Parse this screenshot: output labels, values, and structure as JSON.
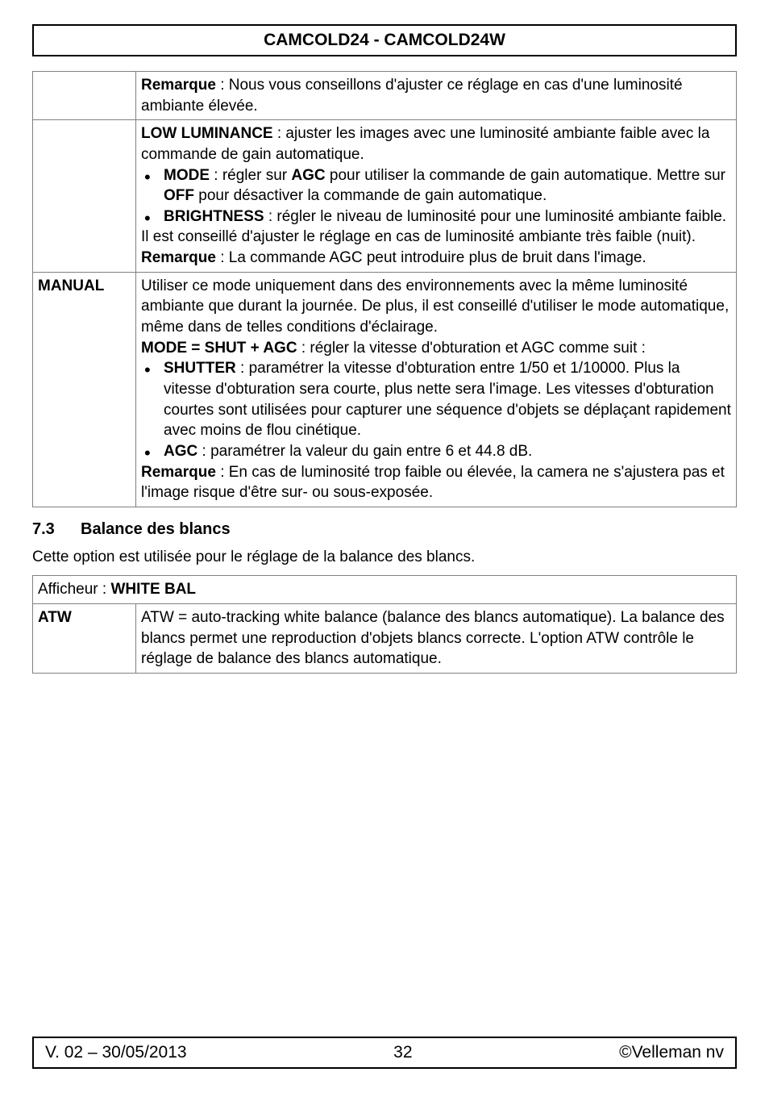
{
  "header": {
    "title": "CAMCOLD24 - CAMCOLD24W"
  },
  "table1": {
    "row1": {
      "label": "",
      "remarque_label": "Remarque",
      "remarque_text": " : Nous vous conseillons d'ajuster ce réglage en cas d'une luminosité ambiante élevée."
    },
    "row2": {
      "label": "",
      "low_lum_label": "LOW LUMINANCE",
      "low_lum_text": " : ajuster les images avec une luminosité ambiante faible avec la commande de gain automatique.",
      "bullet1_label": "MODE",
      "bullet1_text": " : régler sur ",
      "bullet1_bold": "AGC",
      "bullet1_text2": " pour utiliser la commande de gain automatique. Mettre sur ",
      "bullet1_bold2": "OFF",
      "bullet1_text3": " pour désactiver la commande de gain automatique.",
      "bullet2_label": "BRIGHTNESS",
      "bullet2_text": " : régler le niveau de luminosité pour une luminosité ambiante faible.",
      "after_bullets": "Il est conseillé d'ajuster le réglage en cas de luminosité ambiante très faible (nuit).",
      "remarque_label": "Remarque",
      "remarque_text": " : La commande AGC peut introduire plus de bruit dans l'image."
    },
    "row3": {
      "label": "MANUAL",
      "intro": "Utiliser ce mode uniquement dans des environnements avec la même luminosité ambiante que durant la journée. De plus, il est conseillé d'utiliser le mode automatique, même dans de telles conditions d'éclairage.",
      "mode_label": "MODE = SHUT + AGC",
      "mode_text": " : régler la vitesse d'obturation et AGC comme suit :",
      "bullet1_label": "SHUTTER",
      "bullet1_text": " : paramétrer la vitesse d'obturation entre 1/50 et 1/10000. Plus la vitesse d'obturation sera courte, plus nette sera l'image. Les vitesses d'obturation courtes sont utilisées pour capturer une séquence d'objets se déplaçant rapidement avec moins de flou cinétique.",
      "bullet2_label": "AGC",
      "bullet2_text": " : paramétrer la valeur du gain entre 6 et 44.8 dB.",
      "remarque_label": "Remarque",
      "remarque_text": " : En cas de luminosité trop faible ou élevée, la camera ne s'ajustera pas et l'image risque d'être sur- ou sous-exposée."
    }
  },
  "section": {
    "number": "7.3",
    "title": "Balance des blancs",
    "intro": "Cette option est utilisée pour le réglage de la balance des blancs."
  },
  "table2": {
    "caption_prefix": "Afficheur : ",
    "caption_value": "WHITE BAL",
    "row1": {
      "label": "ATW",
      "text": "ATW = auto-tracking white balance (balance des blancs automatique). La balance des blancs permet une reproduction d'objets blancs correcte. L'option ATW contrôle le réglage de balance des blancs automatique."
    }
  },
  "footer": {
    "version": "V. 02 – 30/05/2013",
    "page": "32",
    "copyright": "©Velleman nv"
  }
}
